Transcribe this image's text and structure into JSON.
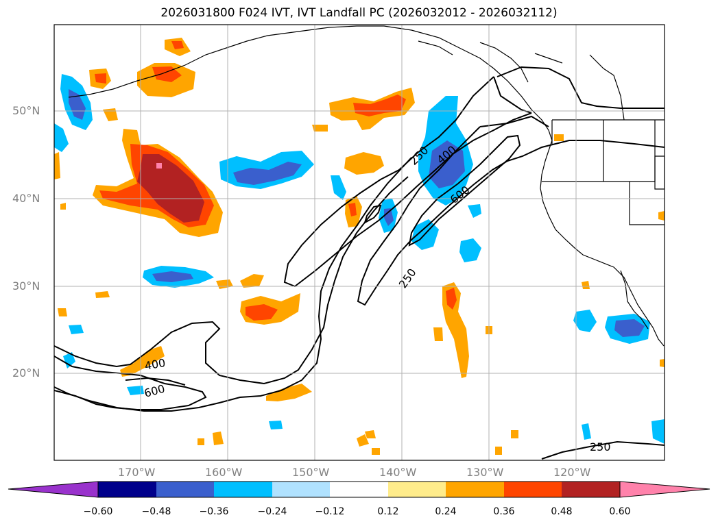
{
  "title": "2026031800 F024 IVT, IVT Landfall PC (2026032012 - 2026032112)",
  "map": {
    "lat_labels": [
      "50°N",
      "40°N",
      "30°N",
      "20°N"
    ],
    "lon_labels": [
      "170°W",
      "160°W",
      "150°W",
      "140°W",
      "130°W",
      "120°W"
    ],
    "contour_labels": [
      "250",
      "400",
      "600",
      "250",
      "400",
      "600",
      "250"
    ]
  },
  "colorbar": {
    "ticks": [
      "−0.60",
      "−0.48",
      "−0.36",
      "−0.24",
      "−0.12",
      "0.12",
      "0.24",
      "0.36",
      "0.48",
      "0.60"
    ],
    "colors": [
      "#9932cc",
      "#00008b",
      "#3a5fcd",
      "#00bfff",
      "#b0e2ff",
      "#ffffff",
      "#ffec8b",
      "#ffa500",
      "#ff4500",
      "#b22222",
      "#ff82ab"
    ]
  }
}
